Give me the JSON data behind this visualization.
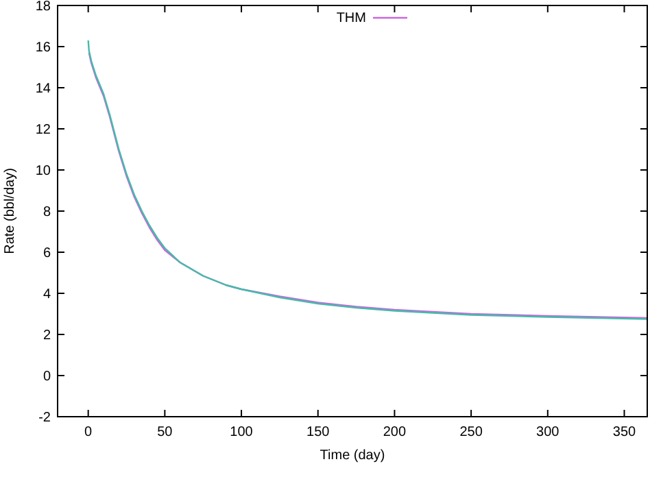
{
  "chart_data": {
    "type": "line",
    "xlabel": "Time (day)",
    "ylabel": "Rate (bbl/day)",
    "xlim": [
      -20,
      365
    ],
    "ylim": [
      -2,
      18
    ],
    "xticks": [
      0,
      50,
      100,
      150,
      200,
      250,
      300,
      350
    ],
    "yticks": [
      -2,
      0,
      2,
      4,
      6,
      8,
      10,
      12,
      14,
      16,
      18
    ],
    "grid": false,
    "legend": "top",
    "line_style": "solid",
    "marker": "none",
    "series": [
      {
        "name": "THM",
        "color": "#cc66dd",
        "x": [
          0.5,
          2,
          5,
          10,
          14,
          20,
          25,
          30,
          35,
          40,
          45,
          50,
          60,
          75,
          90,
          100,
          125,
          150,
          175,
          200,
          250,
          300,
          365
        ],
        "values": [
          15.7,
          15.2,
          14.5,
          13.6,
          12.6,
          10.9,
          9.7,
          8.7,
          7.9,
          7.2,
          6.6,
          6.1,
          5.5,
          4.85,
          4.4,
          4.2,
          3.85,
          3.55,
          3.35,
          3.2,
          3.0,
          2.9,
          2.8
        ]
      },
      {
        "color": "#44bbaa",
        "x": [
          0,
          0.5,
          2,
          5,
          10,
          14,
          20,
          25,
          30,
          35,
          40,
          45,
          50,
          60,
          75,
          90,
          100,
          125,
          150,
          175,
          200,
          250,
          300,
          365
        ],
        "values": [
          16.3,
          15.8,
          15.3,
          14.6,
          13.7,
          12.7,
          11.0,
          9.8,
          8.8,
          8.0,
          7.3,
          6.7,
          6.2,
          5.5,
          4.85,
          4.4,
          4.2,
          3.8,
          3.5,
          3.3,
          3.15,
          2.95,
          2.85,
          2.75
        ]
      }
    ]
  }
}
